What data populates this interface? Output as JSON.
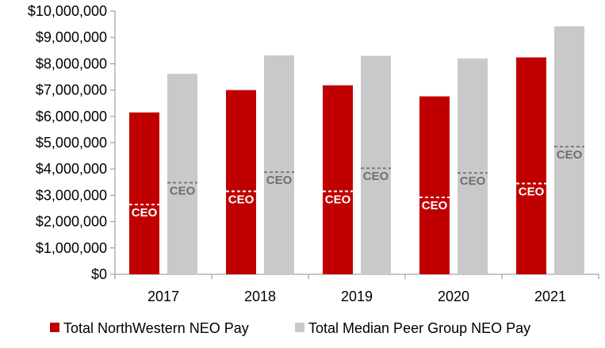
{
  "chart_data": {
    "type": "bar",
    "title": "",
    "xlabel": "",
    "ylabel": "",
    "ylim": [
      0,
      10000000
    ],
    "yticks": [
      0,
      1000000,
      2000000,
      3000000,
      4000000,
      5000000,
      6000000,
      7000000,
      8000000,
      9000000,
      10000000
    ],
    "ytick_labels": [
      "$0",
      "$1,000,000",
      "$2,000,000",
      "$3,000,000",
      "$4,000,000",
      "$5,000,000",
      "$6,000,000",
      "$7,000,000",
      "$8,000,000",
      "$9,000,000",
      "$10,000,000"
    ],
    "categories": [
      "2017",
      "2018",
      "2019",
      "2020",
      "2021"
    ],
    "series": [
      {
        "name": "Total NorthWestern NEO Pay",
        "color": "#c00000",
        "values": [
          6150000,
          7000000,
          7180000,
          6760000,
          8240000
        ],
        "ceo_values": [
          2650000,
          3150000,
          3150000,
          2920000,
          3450000
        ]
      },
      {
        "name": "Total Median Peer Group NEO Pay",
        "color": "#c9c9c9",
        "values": [
          7620000,
          8320000,
          8300000,
          8200000,
          9420000
        ],
        "ceo_values": [
          3480000,
          3880000,
          4030000,
          3850000,
          4850000
        ]
      }
    ],
    "ceo_marker_label": "CEO",
    "grid": false,
    "legend_position": "bottom"
  }
}
